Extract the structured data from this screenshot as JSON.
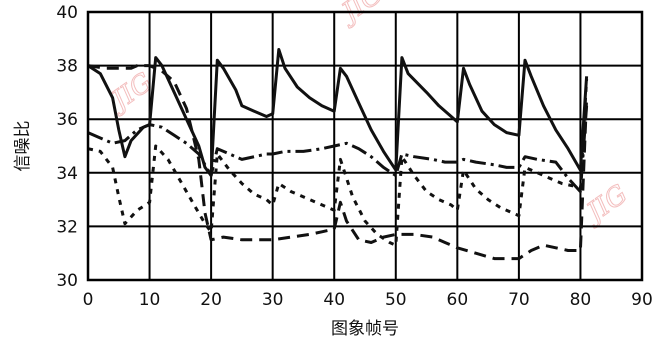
{
  "chart_data": {
    "type": "line",
    "title": "",
    "xlabel": "图象帧号",
    "ylabel": "信噪比",
    "xlim": [
      0,
      90
    ],
    "ylim": [
      30,
      40
    ],
    "x_ticks": [
      0,
      10,
      20,
      30,
      40,
      50,
      60,
      70,
      80,
      90
    ],
    "y_ticks": [
      30,
      32,
      34,
      36,
      38,
      40
    ],
    "grid": true,
    "watermark": "JIG",
    "series": [
      {
        "style": "solid",
        "points": [
          [
            0,
            38
          ],
          [
            2,
            37.7
          ],
          [
            4,
            36.8
          ],
          [
            5,
            35.6
          ],
          [
            6,
            34.6
          ],
          [
            7,
            35.2
          ],
          [
            9,
            35.7
          ],
          [
            10,
            35.8
          ],
          [
            11,
            38.3
          ],
          [
            12,
            38
          ],
          [
            14,
            37
          ],
          [
            16,
            36
          ],
          [
            18,
            35
          ],
          [
            19,
            34.2
          ],
          [
            20,
            33.9
          ],
          [
            21,
            38.2
          ],
          [
            22,
            37.9
          ],
          [
            24,
            37.1
          ],
          [
            25,
            36.5
          ],
          [
            27,
            36.3
          ],
          [
            29,
            36.1
          ],
          [
            30,
            36.2
          ],
          [
            31,
            38.6
          ],
          [
            32,
            37.9
          ],
          [
            34,
            37.2
          ],
          [
            36,
            36.8
          ],
          [
            38,
            36.5
          ],
          [
            40,
            36.3
          ],
          [
            41,
            37.9
          ],
          [
            42,
            37.6
          ],
          [
            44,
            36.6
          ],
          [
            46,
            35.6
          ],
          [
            48,
            34.8
          ],
          [
            50,
            34.1
          ],
          [
            51,
            38.3
          ],
          [
            52,
            37.7
          ],
          [
            55,
            37
          ],
          [
            57,
            36.5
          ],
          [
            59,
            36.1
          ],
          [
            60,
            35.9
          ],
          [
            61,
            37.9
          ],
          [
            62,
            37.3
          ],
          [
            64,
            36.3
          ],
          [
            66,
            35.8
          ],
          [
            68,
            35.5
          ],
          [
            70,
            35.4
          ],
          [
            71,
            38.2
          ],
          [
            72,
            37.6
          ],
          [
            74,
            36.5
          ],
          [
            76,
            35.6
          ],
          [
            78,
            34.9
          ],
          [
            80,
            34.1
          ],
          [
            81,
            37.6
          ]
        ]
      },
      {
        "style": "dash-dot",
        "points": [
          [
            0,
            35.5
          ],
          [
            2,
            35.3
          ],
          [
            4,
            35.1
          ],
          [
            6,
            35.2
          ],
          [
            8,
            35.6
          ],
          [
            10,
            35.8
          ],
          [
            12,
            35.7
          ],
          [
            14,
            35.4
          ],
          [
            16,
            35.1
          ],
          [
            18,
            34.7
          ],
          [
            20,
            33.9
          ],
          [
            21,
            34.9
          ],
          [
            23,
            34.7
          ],
          [
            25,
            34.5
          ],
          [
            27,
            34.6
          ],
          [
            29,
            34.7
          ],
          [
            30,
            34.7
          ],
          [
            32,
            34.8
          ],
          [
            35,
            34.8
          ],
          [
            38,
            34.9
          ],
          [
            40,
            35
          ],
          [
            42,
            35.1
          ],
          [
            44,
            34.9
          ],
          [
            46,
            34.6
          ],
          [
            48,
            34.2
          ],
          [
            50,
            33.9
          ],
          [
            51,
            34.7
          ],
          [
            53,
            34.6
          ],
          [
            56,
            34.5
          ],
          [
            58,
            34.4
          ],
          [
            60,
            34.4
          ],
          [
            61,
            34.5
          ],
          [
            63,
            34.4
          ],
          [
            66,
            34.3
          ],
          [
            68,
            34.2
          ],
          [
            70,
            34.2
          ],
          [
            71,
            34.6
          ],
          [
            73,
            34.5
          ],
          [
            76,
            34.4
          ],
          [
            78,
            33.8
          ],
          [
            80,
            33.3
          ],
          [
            81,
            36.5
          ]
        ]
      },
      {
        "style": "dotted",
        "points": [
          [
            0,
            34.9
          ],
          [
            2,
            34.8
          ],
          [
            4,
            34.2
          ],
          [
            5,
            33.1
          ],
          [
            6,
            32.1
          ],
          [
            8,
            32.6
          ],
          [
            10,
            32.9
          ],
          [
            11,
            35
          ],
          [
            13,
            34.5
          ],
          [
            15,
            33.7
          ],
          [
            17,
            32.9
          ],
          [
            19,
            32.1
          ],
          [
            20,
            31.8
          ],
          [
            21,
            34.7
          ],
          [
            23,
            34.1
          ],
          [
            25,
            33.6
          ],
          [
            27,
            33.2
          ],
          [
            29,
            33
          ],
          [
            30,
            32.8
          ],
          [
            31,
            33.6
          ],
          [
            33,
            33.3
          ],
          [
            35,
            33.1
          ],
          [
            37,
            32.9
          ],
          [
            39,
            32.7
          ],
          [
            40,
            32.6
          ],
          [
            41,
            34.5
          ],
          [
            43,
            33.1
          ],
          [
            45,
            32.2
          ],
          [
            47,
            31.7
          ],
          [
            49,
            31.4
          ],
          [
            50,
            31.3
          ],
          [
            51,
            34.6
          ],
          [
            53,
            33.9
          ],
          [
            55,
            33.3
          ],
          [
            57,
            33
          ],
          [
            59,
            32.8
          ],
          [
            60,
            32.6
          ],
          [
            61,
            34.1
          ],
          [
            63,
            33.4
          ],
          [
            65,
            33
          ],
          [
            67,
            32.7
          ],
          [
            69,
            32.5
          ],
          [
            70,
            32.4
          ],
          [
            71,
            34.2
          ],
          [
            73,
            34
          ],
          [
            75,
            33.8
          ],
          [
            77,
            33.6
          ],
          [
            79,
            33.5
          ],
          [
            80,
            33.4
          ],
          [
            81,
            37.5
          ]
        ]
      },
      {
        "style": "long-dash",
        "points": [
          [
            0,
            38
          ],
          [
            3,
            37.9
          ],
          [
            5,
            37.9
          ],
          [
            7,
            37.9
          ],
          [
            8,
            38
          ],
          [
            10,
            38
          ],
          [
            12,
            37.8
          ],
          [
            14,
            37.4
          ],
          [
            16,
            36.4
          ],
          [
            18,
            34.5
          ],
          [
            19,
            32.5
          ],
          [
            20,
            31.5
          ],
          [
            22,
            31.6
          ],
          [
            25,
            31.5
          ],
          [
            28,
            31.5
          ],
          [
            30,
            31.5
          ],
          [
            33,
            31.6
          ],
          [
            36,
            31.7
          ],
          [
            38,
            31.8
          ],
          [
            40,
            31.9
          ],
          [
            41,
            32.9
          ],
          [
            42,
            32.2
          ],
          [
            44,
            31.5
          ],
          [
            46,
            31.4
          ],
          [
            48,
            31.6
          ],
          [
            50,
            31.7
          ],
          [
            53,
            31.7
          ],
          [
            56,
            31.6
          ],
          [
            58,
            31.4
          ],
          [
            60,
            31.2
          ],
          [
            63,
            31
          ],
          [
            66,
            30.8
          ],
          [
            68,
            30.8
          ],
          [
            70,
            30.8
          ],
          [
            72,
            31.1
          ],
          [
            74,
            31.3
          ],
          [
            76,
            31.2
          ],
          [
            78,
            31.1
          ],
          [
            80,
            31.1
          ],
          [
            81,
            36.8
          ]
        ]
      }
    ]
  }
}
